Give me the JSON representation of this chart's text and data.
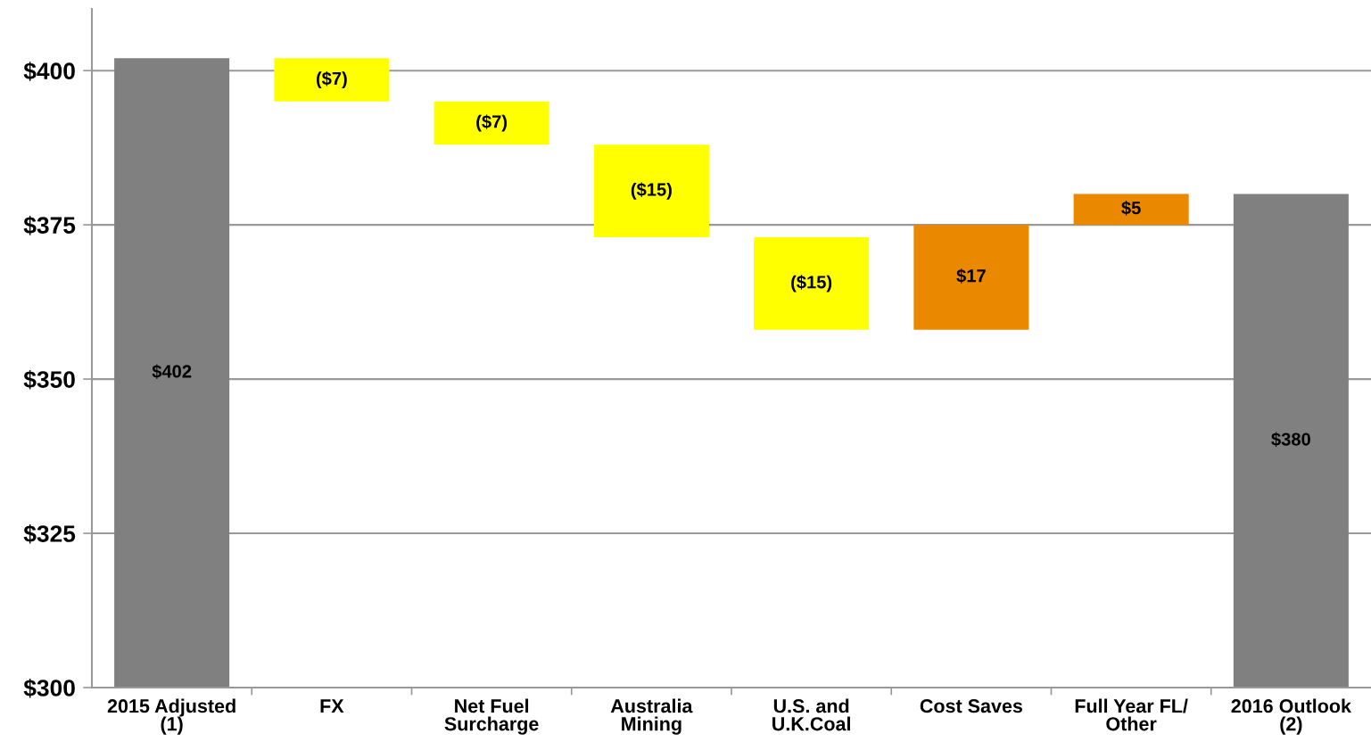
{
  "chart_data": {
    "type": "bar",
    "categories": [
      "2015 Adjusted\n(1)",
      "FX",
      "Net Fuel\nSurcharge",
      "Australia\nMining",
      "U.S. and\nU.K.Coal",
      "Cost Saves",
      "Full Year FL/\nOther",
      "2016 Outlook\n(2)"
    ],
    "values": [
      402,
      -7,
      -7,
      -15,
      -15,
      17,
      5,
      380
    ],
    "base": [
      null,
      402,
      395,
      388,
      373,
      358,
      375,
      null
    ],
    "colors": [
      "#808080",
      "#ffff00",
      "#ffff00",
      "#ffff00",
      "#ffff00",
      "#ea8800",
      "#ea8800",
      "#808080"
    ],
    "value_labels": [
      "$402",
      "($7)",
      "($7)",
      "($15)",
      "($15)",
      "$17",
      "$5",
      "$380"
    ],
    "ylim": [
      300,
      410
    ],
    "yticks": [
      {
        "value": 300,
        "label": "$300"
      },
      {
        "value": 325,
        "label": "$325"
      },
      {
        "value": 350,
        "label": "$350"
      },
      {
        "value": 375,
        "label": "$375"
      },
      {
        "value": 400,
        "label": "$400"
      }
    ],
    "grid": "y"
  }
}
